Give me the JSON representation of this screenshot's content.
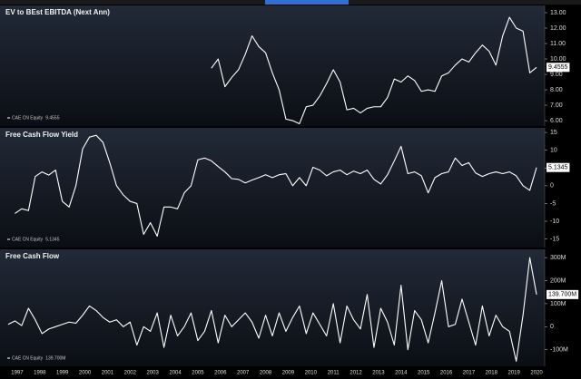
{
  "chart_data": [
    {
      "type": "line",
      "title": "EV to BEst EBITDA (Next Ann)",
      "legend": "lower left",
      "xlim": [
        1996.9,
        2020.86
      ],
      "ylim": [
        5.65,
        13.47
      ],
      "yticks": [
        {
          "value": 13,
          "label": "13.00"
        },
        {
          "value": 12,
          "label": "12.00"
        },
        {
          "value": 11,
          "label": "11.00"
        },
        {
          "value": 10,
          "label": "10.00"
        },
        {
          "value": 9,
          "label": "9.00"
        },
        {
          "value": 8,
          "label": "8.00"
        },
        {
          "value": 7,
          "label": "7.00"
        },
        {
          "value": 6,
          "label": "6.00"
        }
      ],
      "series": [
        {
          "name": "CAE CN Equity",
          "color": "#ffffff",
          "last_value_label": "9.4555",
          "x": [
            2006.1,
            2006.4,
            2006.7,
            2007.0,
            2007.3,
            2007.6,
            2007.9,
            2008.2,
            2008.5,
            2008.8,
            2009.1,
            2009.4,
            2009.7,
            2010.0,
            2010.3,
            2010.6,
            2010.9,
            2011.2,
            2011.5,
            2011.8,
            2012.1,
            2012.4,
            2012.7,
            2013.0,
            2013.3,
            2013.6,
            2013.9,
            2014.2,
            2014.5,
            2014.8,
            2015.1,
            2015.4,
            2015.7,
            2016.0,
            2016.3,
            2016.6,
            2016.9,
            2017.2,
            2017.5,
            2017.8,
            2018.1,
            2018.4,
            2018.7,
            2019.0,
            2019.3,
            2019.6,
            2019.9,
            2020.2,
            2020.5
          ],
          "values": [
            9.4,
            10.0,
            8.2,
            8.8,
            9.3,
            10.3,
            11.5,
            10.8,
            10.4,
            9.1,
            8.0,
            6.1,
            6.0,
            5.8,
            6.9,
            7.0,
            7.6,
            8.4,
            9.3,
            8.5,
            6.7,
            6.8,
            6.5,
            6.8,
            6.9,
            6.9,
            7.5,
            8.7,
            8.5,
            8.9,
            8.6,
            7.9,
            8.0,
            7.9,
            8.9,
            9.1,
            9.6,
            10.0,
            9.8,
            10.4,
            10.9,
            10.5,
            9.6,
            11.5,
            12.7,
            12.0,
            11.8,
            9.1,
            9.4555
          ]
        }
      ]
    },
    {
      "type": "line",
      "title": "Free Cash Flow Yield",
      "legend": "lower left",
      "xlim": [
        1996.9,
        2020.86
      ],
      "ylim": [
        -17.4,
        16.3
      ],
      "yticks": [
        15,
        10,
        5,
        0,
        -5,
        -10,
        -15
      ],
      "series": [
        {
          "name": "CAE CN Equity",
          "color": "#ffffff",
          "last_value_label": "5.1345",
          "x": [
            1997.4,
            1997.7,
            1998.0,
            1998.3,
            1998.6,
            1998.9,
            1999.2,
            1999.5,
            1999.8,
            2000.1,
            2000.4,
            2000.7,
            2001.0,
            2001.3,
            2001.6,
            2001.9,
            2002.2,
            2002.5,
            2002.8,
            2003.1,
            2003.4,
            2003.7,
            2004.0,
            2004.3,
            2004.6,
            2004.9,
            2005.2,
            2005.5,
            2005.8,
            2006.1,
            2006.4,
            2006.7,
            2007.0,
            2007.3,
            2007.6,
            2007.9,
            2008.2,
            2008.5,
            2008.8,
            2009.1,
            2009.4,
            2009.7,
            2010.0,
            2010.3,
            2010.6,
            2010.9,
            2011.2,
            2011.5,
            2011.8,
            2012.1,
            2012.4,
            2012.7,
            2013.0,
            2013.3,
            2013.6,
            2013.9,
            2014.2,
            2014.5,
            2014.8,
            2015.1,
            2015.4,
            2015.7,
            2016.0,
            2016.3,
            2016.6,
            2016.9,
            2017.2,
            2017.5,
            2017.8,
            2018.1,
            2018.4,
            2018.7,
            2019.0,
            2019.3,
            2019.6,
            2019.9,
            2020.2,
            2020.5
          ],
          "values": [
            -7.8,
            -6.5,
            -7.0,
            2.6,
            3.9,
            3.0,
            4.4,
            -4.4,
            -6.0,
            0.0,
            10.4,
            13.7,
            14.2,
            12.2,
            6.5,
            0.0,
            -2.6,
            -4.4,
            -5.0,
            -13.7,
            -10.4,
            -14.2,
            -6.0,
            -6.0,
            -6.5,
            -2.0,
            0.0,
            7.3,
            7.8,
            7.0,
            5.4,
            3.9,
            2.0,
            1.8,
            0.8,
            1.6,
            2.3,
            3.1,
            2.3,
            3.1,
            3.4,
            0.0,
            2.3,
            0.0,
            5.2,
            4.4,
            2.8,
            3.9,
            4.4,
            3.1,
            4.1,
            3.4,
            4.4,
            1.8,
            0.5,
            3.1,
            7.0,
            11.1,
            3.4,
            3.9,
            2.8,
            -2.0,
            2.3,
            3.4,
            3.9,
            7.8,
            5.7,
            6.5,
            3.6,
            2.6,
            3.4,
            3.9,
            3.4,
            3.9,
            2.8,
            0.0,
            -1.3,
            5.1345
          ]
        }
      ]
    },
    {
      "type": "line",
      "title": "Free Cash Flow",
      "legend": "lower left",
      "xlim": [
        1996.9,
        2020.86
      ],
      "ylim": [
        -172000000,
        336000000
      ],
      "yticks": [
        {
          "value": 300000000,
          "label": "300M"
        },
        {
          "value": 200000000,
          "label": "200M"
        },
        {
          "value": 100000000,
          "label": "100M"
        },
        0,
        {
          "value": -100000000,
          "label": "-100M"
        }
      ],
      "xticks": [
        {
          "value": 1997.5,
          "label": "1997"
        },
        {
          "value": 1998.5,
          "label": "1998"
        },
        {
          "value": 1999.5,
          "label": "1999"
        },
        {
          "value": 2000.5,
          "label": "2000"
        },
        {
          "value": 2001.5,
          "label": "2001"
        },
        {
          "value": 2002.5,
          "label": "2002"
        },
        {
          "value": 2003.5,
          "label": "2003"
        },
        {
          "value": 2004.5,
          "label": "2004"
        },
        {
          "value": 2005.5,
          "label": "2005"
        },
        {
          "value": 2006.5,
          "label": "2006"
        },
        {
          "value": 2007.5,
          "label": "2007"
        },
        {
          "value": 2008.5,
          "label": "2008"
        },
        {
          "value": 2009.5,
          "label": "2009"
        },
        {
          "value": 2010.5,
          "label": "2010"
        },
        {
          "value": 2011.5,
          "label": "2011"
        },
        {
          "value": 2012.5,
          "label": "2012"
        },
        {
          "value": 2013.5,
          "label": "2013"
        },
        {
          "value": 2014.5,
          "label": "2014"
        },
        {
          "value": 2015.5,
          "label": "2015"
        },
        {
          "value": 2016.5,
          "label": "2016"
        },
        {
          "value": 2017.5,
          "label": "2017"
        },
        {
          "value": 2018.5,
          "label": "2018"
        },
        {
          "value": 2019.5,
          "label": "2019"
        },
        {
          "value": 2020.5,
          "label": "2020"
        }
      ],
      "series": [
        {
          "name": "CAE CN Equity",
          "color": "#ffffff",
          "last_value_label": "139.700M",
          "x": [
            1997.1,
            1997.4,
            1997.7,
            1998.0,
            1998.3,
            1998.6,
            1998.9,
            1999.2,
            1999.5,
            1999.8,
            2000.1,
            2000.4,
            2000.7,
            2001.0,
            2001.3,
            2001.6,
            2001.9,
            2002.2,
            2002.5,
            2002.8,
            2003.1,
            2003.4,
            2003.7,
            2004.0,
            2004.3,
            2004.6,
            2004.9,
            2005.2,
            2005.5,
            2005.8,
            2006.1,
            2006.4,
            2006.7,
            2007.0,
            2007.3,
            2007.6,
            2007.9,
            2008.2,
            2008.5,
            2008.8,
            2009.1,
            2009.4,
            2009.7,
            2010.0,
            2010.3,
            2010.6,
            2010.9,
            2011.2,
            2011.5,
            2011.8,
            2012.1,
            2012.4,
            2012.7,
            2013.0,
            2013.3,
            2013.6,
            2013.9,
            2014.2,
            2014.5,
            2014.8,
            2015.1,
            2015.4,
            2015.7,
            2016.0,
            2016.3,
            2016.6,
            2016.9,
            2017.2,
            2017.5,
            2017.8,
            2018.1,
            2018.4,
            2018.7,
            2019.0,
            2019.3,
            2019.6,
            2019.9,
            2020.2,
            2020.5
          ],
          "values": [
            10000000,
            25000000,
            5000000,
            80000000,
            30000000,
            -30000000,
            -10000000,
            0,
            10000000,
            20000000,
            15000000,
            50000000,
            90000000,
            70000000,
            40000000,
            20000000,
            30000000,
            0,
            20000000,
            -80000000,
            0,
            -20000000,
            60000000,
            -90000000,
            50000000,
            -40000000,
            0,
            60000000,
            -60000000,
            -20000000,
            70000000,
            -70000000,
            50000000,
            0,
            30000000,
            60000000,
            20000000,
            -50000000,
            50000000,
            -40000000,
            60000000,
            -20000000,
            40000000,
            90000000,
            -30000000,
            60000000,
            10000000,
            -40000000,
            100000000,
            -70000000,
            90000000,
            30000000,
            -10000000,
            140000000,
            -90000000,
            80000000,
            20000000,
            -80000000,
            180000000,
            -100000000,
            70000000,
            30000000,
            -70000000,
            60000000,
            200000000,
            0,
            10000000,
            120000000,
            20000000,
            -80000000,
            90000000,
            -40000000,
            50000000,
            0,
            -20000000,
            -150000000,
            50000000,
            300000000,
            139700000
          ]
        }
      ]
    }
  ]
}
